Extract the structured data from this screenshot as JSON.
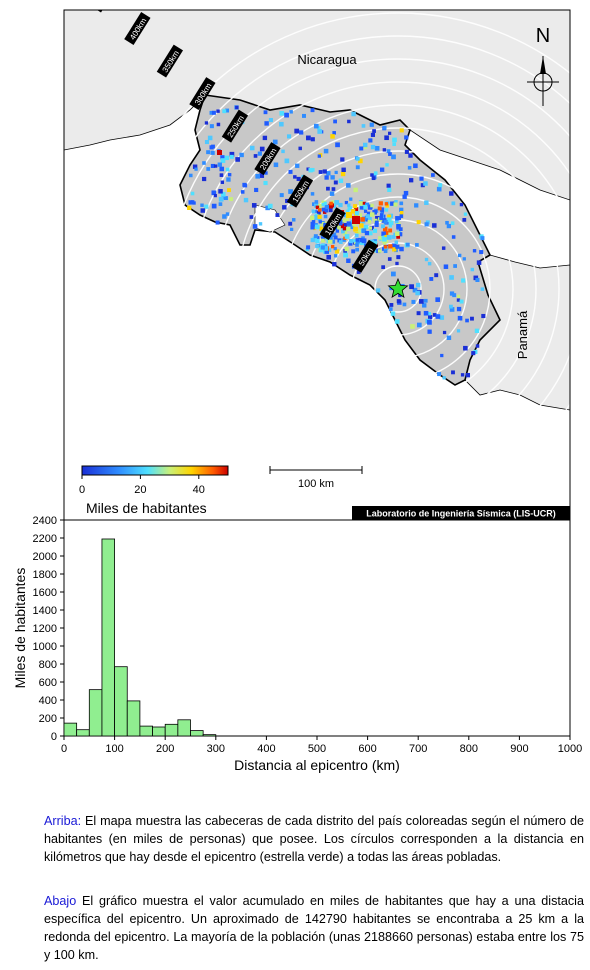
{
  "map": {
    "country_labels": [
      "Nicaragua",
      "Panamá"
    ],
    "north_label": "N",
    "ring_labels": [
      "50km",
      "100km",
      "150km",
      "200km",
      "250km",
      "300km",
      "350km",
      "400km",
      "450km"
    ],
    "colorbar": {
      "ticks": [
        "0",
        "20",
        "40"
      ],
      "label": "Miles de habitantes"
    },
    "scalebar_label": "100 km",
    "credit": "Laboratorio de Ingeniería Sísmica (LIS-UCR)",
    "colors": {
      "ocean": "#ffffff",
      "land": "#ebebeb",
      "costa_rica": "#c8c8c8",
      "rings": "#ffffff",
      "epicenter": "#33dd33"
    },
    "icons": [
      "compass-rose-icon",
      "epicenter-star-icon"
    ]
  },
  "chart_data": {
    "type": "bar",
    "xlabel": "Distancia al epicentro (km)",
    "ylabel": "Miles de habitantes",
    "xlim": [
      0,
      1000
    ],
    "ylim": [
      0,
      2400
    ],
    "xticks": [
      0,
      100,
      200,
      300,
      400,
      500,
      600,
      700,
      800,
      900,
      1000
    ],
    "yticks": [
      0,
      200,
      400,
      600,
      800,
      1000,
      1200,
      1400,
      1600,
      1800,
      2000,
      2200,
      2400
    ],
    "bin_width": 25,
    "bins_start": [
      0,
      25,
      50,
      75,
      100,
      125,
      150,
      175,
      200,
      225,
      250,
      275
    ],
    "values": [
      143,
      70,
      515,
      2189,
      770,
      390,
      110,
      100,
      130,
      180,
      60,
      15
    ],
    "bar_color": "#90ee90"
  },
  "captions": {
    "top_lead": "Arriba:",
    "top_text": " El mapa muestra las cabeceras de cada distrito del país coloreadas según el número de habitantes (en miles de personas) que posee. Los círculos corresponden a la distancia en kilómetros que hay desde el epicentro (estrella verde) a todas las áreas pobladas.",
    "bottom_lead": "Abajo",
    "bottom_text": " El gráfico muestra el valor acumulado en miles de habitantes que hay a una distacia específica del epicentro. Un aproximado de 142790 habitantes se encontraba a 25 km a la redonda del epicentro. La mayoría de la población (unas 2188660 personas) estaba entre los 75 y 100 km."
  }
}
